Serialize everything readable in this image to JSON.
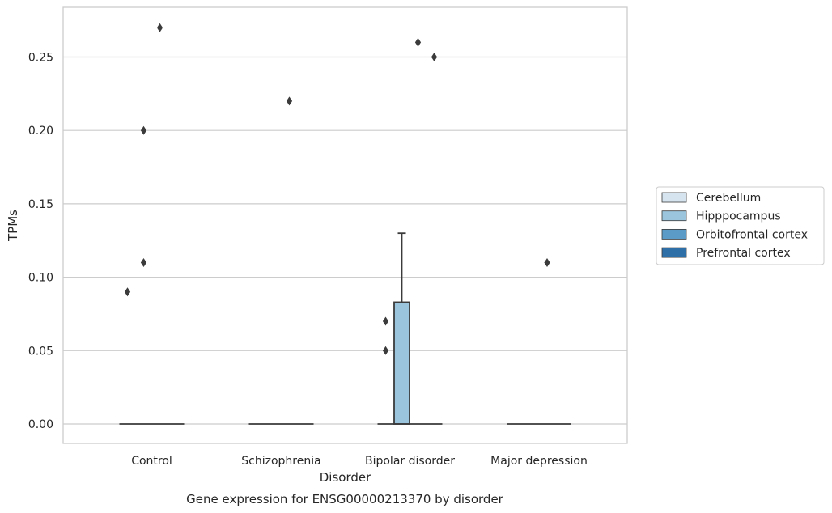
{
  "chart_data": {
    "type": "box",
    "title": "",
    "caption": "Gene expression for ENSG00000213370 by disorder",
    "xlabel": "Disorder",
    "ylabel": "TPMs",
    "ylim": [
      -0.013,
      0.284
    ],
    "yticks": [
      "0.00",
      "0.05",
      "0.10",
      "0.15",
      "0.20",
      "0.25"
    ],
    "ytick_values": [
      0,
      0.05,
      0.1,
      0.15,
      0.2,
      0.25
    ],
    "grid": "horizontal",
    "legend_position": "right",
    "categories": [
      "Control",
      "Schizophrenia",
      "Bipolar disorder",
      "Major depression"
    ],
    "series": [
      {
        "name": "Cerebellum",
        "color": "#d6e4f0",
        "boxes": [
          {
            "q1": 0,
            "median": 0,
            "q3": 0,
            "whisker_low": 0,
            "whisker_high": 0,
            "outliers": [
              0.09
            ]
          },
          {
            "q1": 0,
            "median": 0,
            "q3": 0,
            "whisker_low": 0,
            "whisker_high": 0,
            "outliers": []
          },
          {
            "q1": 0,
            "median": 0,
            "q3": 0,
            "whisker_low": 0,
            "whisker_high": 0,
            "outliers": [
              0.05,
              0.07
            ]
          },
          {
            "q1": 0,
            "median": 0,
            "q3": 0,
            "whisker_low": 0,
            "whisker_high": 0,
            "outliers": []
          }
        ]
      },
      {
        "name": "Hipppocampus",
        "color": "#9ac5dc",
        "boxes": [
          {
            "q1": 0,
            "median": 0,
            "q3": 0,
            "whisker_low": 0,
            "whisker_high": 0,
            "outliers": [
              0.11,
              0.2
            ]
          },
          {
            "q1": 0,
            "median": 0,
            "q3": 0,
            "whisker_low": 0,
            "whisker_high": 0,
            "outliers": []
          },
          {
            "q1": 0,
            "median": 0,
            "q3": 0.083,
            "whisker_low": 0,
            "whisker_high": 0.13,
            "outliers": []
          },
          {
            "q1": 0,
            "median": 0,
            "q3": 0,
            "whisker_low": 0,
            "whisker_high": 0,
            "outliers": []
          }
        ]
      },
      {
        "name": "Orbitofrontal cortex",
        "color": "#5a9cc7",
        "boxes": [
          {
            "q1": 0,
            "median": 0,
            "q3": 0,
            "whisker_low": 0,
            "whisker_high": 0,
            "outliers": [
              0.27
            ]
          },
          {
            "q1": 0,
            "median": 0,
            "q3": 0,
            "whisker_low": 0,
            "whisker_high": 0,
            "outliers": [
              0.22
            ]
          },
          {
            "q1": 0,
            "median": 0,
            "q3": 0,
            "whisker_low": 0,
            "whisker_high": 0,
            "outliers": [
              0.26
            ]
          },
          {
            "q1": 0,
            "median": 0,
            "q3": 0,
            "whisker_low": 0,
            "whisker_high": 0,
            "outliers": [
              0.11
            ]
          }
        ]
      },
      {
        "name": "Prefrontal cortex",
        "color": "#2e6fa8",
        "boxes": [
          {
            "q1": 0,
            "median": 0,
            "q3": 0,
            "whisker_low": 0,
            "whisker_high": 0,
            "outliers": []
          },
          {
            "q1": 0,
            "median": 0,
            "q3": 0,
            "whisker_low": 0,
            "whisker_high": 0,
            "outliers": []
          },
          {
            "q1": 0,
            "median": 0,
            "q3": 0,
            "whisker_low": 0,
            "whisker_high": 0,
            "outliers": [
              0.25
            ]
          },
          {
            "q1": 0,
            "median": 0,
            "q3": 0,
            "whisker_low": 0,
            "whisker_high": 0,
            "outliers": []
          }
        ]
      }
    ]
  }
}
